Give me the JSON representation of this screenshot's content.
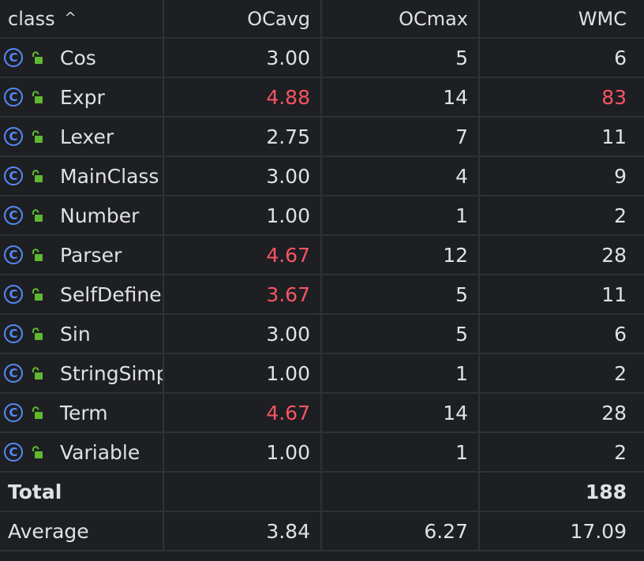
{
  "colors": {
    "background": "#1e1f22",
    "text": "#dfe1e5",
    "warning": "#f75464",
    "class_icon": "#548af7",
    "lock_icon": "#5fb832",
    "gridline": "#2f3136"
  },
  "icons": {
    "class": "class-icon",
    "visibility": "unlocked-public-icon",
    "sort": "sort-ascending-icon"
  },
  "header": {
    "class": "class",
    "ocavg": "OCavg",
    "ocmax": "OCmax",
    "wmc": "WMC",
    "sort_glyph": "^"
  },
  "rows": [
    {
      "name": "Cos",
      "ocavg": "3.00",
      "ocmax": "5",
      "wmc": "6",
      "ocavg_warn": false,
      "wmc_warn": false
    },
    {
      "name": "Expr",
      "ocavg": "4.88",
      "ocmax": "14",
      "wmc": "83",
      "ocavg_warn": true,
      "wmc_warn": true
    },
    {
      "name": "Lexer",
      "ocavg": "2.75",
      "ocmax": "7",
      "wmc": "11",
      "ocavg_warn": false,
      "wmc_warn": false
    },
    {
      "name": "MainClass",
      "ocavg": "3.00",
      "ocmax": "4",
      "wmc": "9",
      "ocavg_warn": false,
      "wmc_warn": false
    },
    {
      "name": "Number",
      "ocavg": "1.00",
      "ocmax": "1",
      "wmc": "2",
      "ocavg_warn": false,
      "wmc_warn": false
    },
    {
      "name": "Parser",
      "ocavg": "4.67",
      "ocmax": "12",
      "wmc": "28",
      "ocavg_warn": true,
      "wmc_warn": false
    },
    {
      "name": "SelfDefine",
      "ocavg": "3.67",
      "ocmax": "5",
      "wmc": "11",
      "ocavg_warn": true,
      "wmc_warn": false
    },
    {
      "name": "Sin",
      "ocavg": "3.00",
      "ocmax": "5",
      "wmc": "6",
      "ocavg_warn": false,
      "wmc_warn": false
    },
    {
      "name": "StringSimp",
      "ocavg": "1.00",
      "ocmax": "1",
      "wmc": "2",
      "ocavg_warn": false,
      "wmc_warn": false
    },
    {
      "name": "Term",
      "ocavg": "4.67",
      "ocmax": "14",
      "wmc": "28",
      "ocavg_warn": true,
      "wmc_warn": false
    },
    {
      "name": "Variable",
      "ocavg": "1.00",
      "ocmax": "1",
      "wmc": "2",
      "ocavg_warn": false,
      "wmc_warn": false
    }
  ],
  "total": {
    "label": "Total",
    "ocavg": "",
    "ocmax": "",
    "wmc": "188"
  },
  "average": {
    "label": "Average",
    "ocavg": "3.84",
    "ocmax": "6.27",
    "wmc": "17.09"
  }
}
